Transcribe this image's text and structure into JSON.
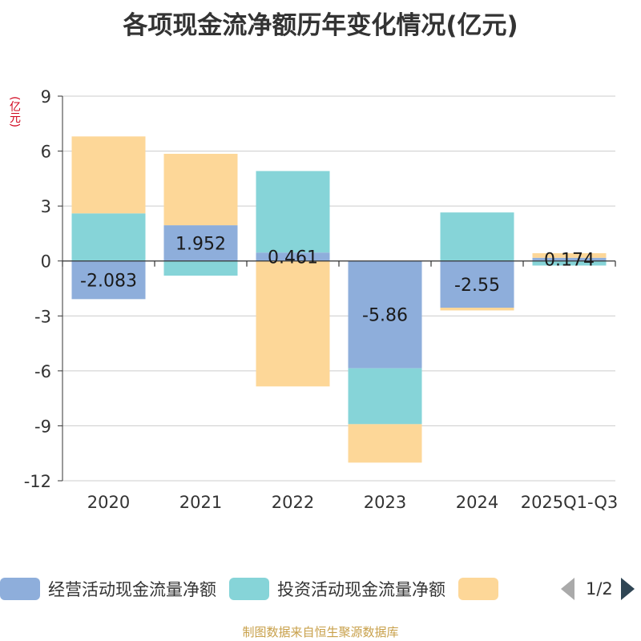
{
  "chart_data": {
    "type": "bar",
    "stacked": true,
    "title": "各项现金流净额历年变化情况(亿元)",
    "ylabel": "(亿元)",
    "xlabel": "",
    "categories": [
      "2020",
      "2021",
      "2022",
      "2023",
      "2024",
      "2025Q1-Q3"
    ],
    "ylim": [
      -12,
      9
    ],
    "yticks": [
      9,
      6,
      3,
      0,
      -3,
      -6,
      -9,
      -12
    ],
    "series": [
      {
        "name": "经营活动现金流量净额",
        "color": "#8eaedb",
        "values": [
          -2.083,
          1.952,
          0.461,
          -5.86,
          -2.55,
          0.174
        ]
      },
      {
        "name": "投资活动现金流量净额",
        "color": "#86d4d8",
        "values": [
          2.6,
          -0.8,
          4.45,
          -3.05,
          2.65,
          -0.25
        ]
      },
      {
        "name": "",
        "color": "#fdd798",
        "values": [
          4.2,
          3.9,
          -6.85,
          -2.1,
          -0.15,
          0.25
        ]
      }
    ],
    "data_labels": [
      "-2.083",
      "1.952",
      "0.461",
      "-5.86",
      "-2.55",
      "0.174"
    ],
    "legend_position": "bottom",
    "grid": true
  },
  "legend": {
    "items": [
      {
        "label": "经营活动现金流量净额",
        "color": "#8eaedb"
      },
      {
        "label": "投资活动现金流量净额",
        "color": "#86d4d8"
      },
      {
        "label": "",
        "color": "#fdd798"
      }
    ],
    "page": "1/2"
  },
  "source": "制图数据来自恒生聚源数据库"
}
